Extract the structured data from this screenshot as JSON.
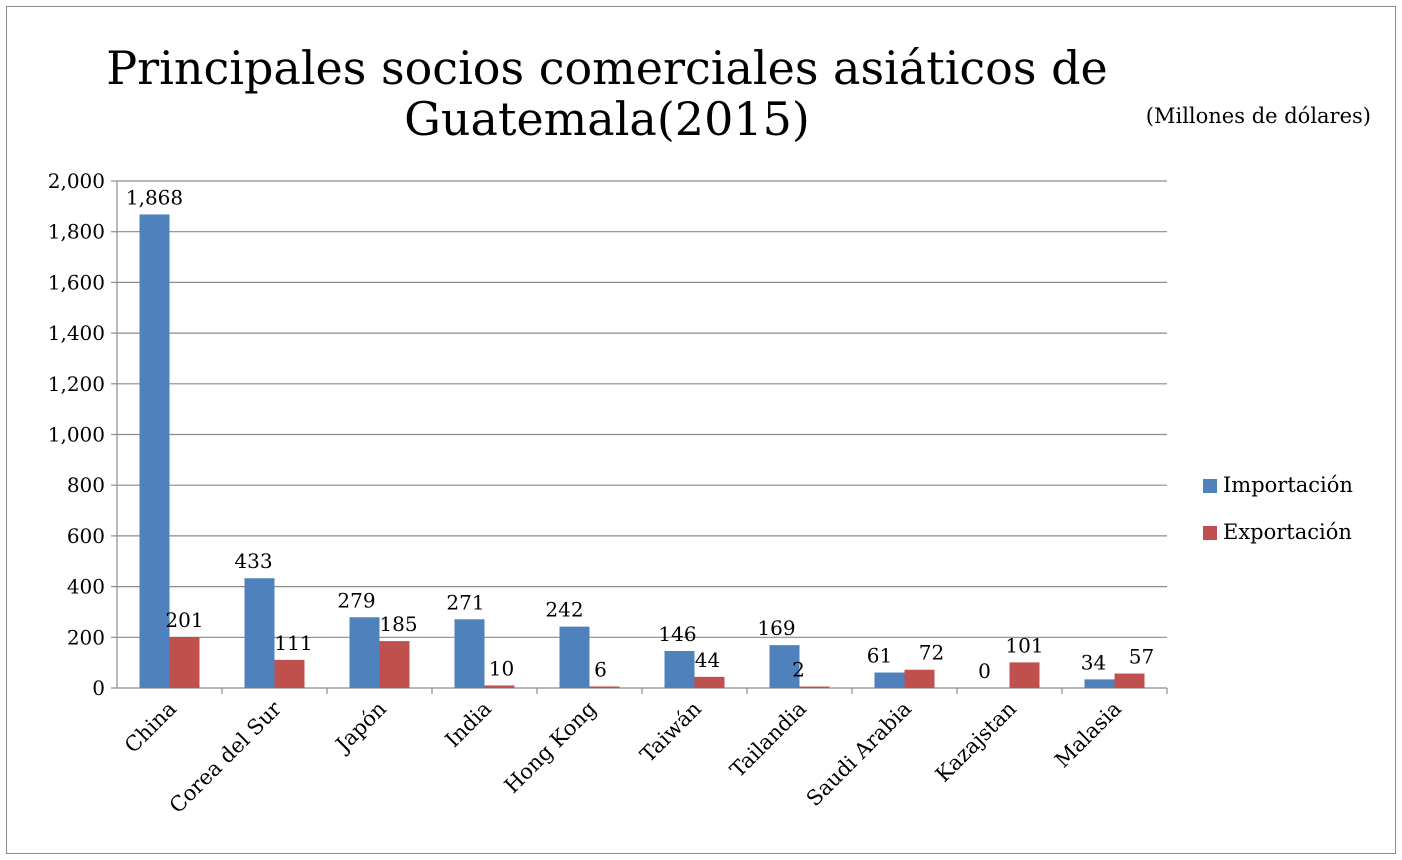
{
  "chart_data": {
    "type": "bar",
    "title_lines": [
      "Principales socios comerciales asiáticos de",
      "Guatemala(2015)"
    ],
    "unit_note": "(Millones de dólares)",
    "categories": [
      "China",
      "Corea del Sur",
      "Japón",
      "India",
      "Hong Kong",
      "Taiwán",
      "Tailandia",
      "Saudi Arabia",
      "Kazajstan",
      "Malasia"
    ],
    "series": [
      {
        "name": "Importación",
        "color": "#4f81bd",
        "values": [
          1868,
          433,
          279,
          271,
          242,
          146,
          169,
          61,
          0,
          34
        ],
        "labels": [
          "1,868",
          "433",
          "279",
          "271",
          "242",
          "146",
          "169",
          "61",
          "0",
          "34"
        ]
      },
      {
        "name": "Exportación",
        "color": "#c0504d",
        "values": [
          201,
          111,
          185,
          10,
          6,
          44,
          2,
          72,
          101,
          57
        ],
        "labels": [
          "201",
          "111",
          "185",
          "10",
          "6",
          "44",
          "2",
          "72",
          "101",
          "57"
        ]
      }
    ],
    "ylim": [
      0,
      2000
    ],
    "yticks": [
      "0",
      "200",
      "400",
      "600",
      "800",
      "1,000",
      "1,200",
      "1,400",
      "1,600",
      "1,800",
      "2,000"
    ],
    "grid": true,
    "legend_position": "right"
  }
}
